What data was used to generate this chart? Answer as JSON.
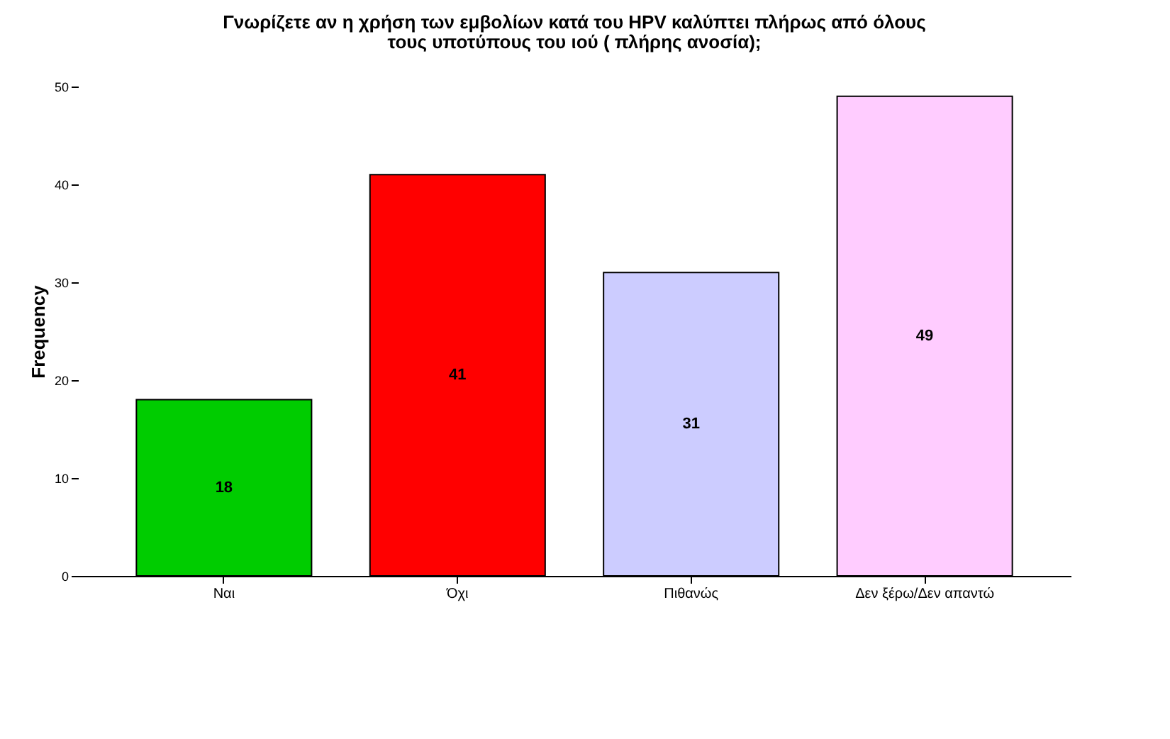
{
  "chart_data": {
    "type": "bar",
    "title": "Γνωρίζετε αν η χρήση των εμβολίων κατά του HPV καλύπτει πλήρως από όλους τους υποτύπους του ιού ( πλήρης ανοσία);",
    "ylabel": "Frequency",
    "categories": [
      "Ναι",
      "Όχι",
      "Πιθανώς",
      "Δεν ξέρω/Δεν απαντώ"
    ],
    "values": [
      18,
      41,
      31,
      49
    ],
    "colors": [
      "#00cc00",
      "#ff0000",
      "#ccccff",
      "#ffccff"
    ],
    "ylim": [
      0,
      50
    ],
    "yticks": [
      0,
      10,
      20,
      30,
      40,
      50
    ],
    "data_labels": true
  }
}
